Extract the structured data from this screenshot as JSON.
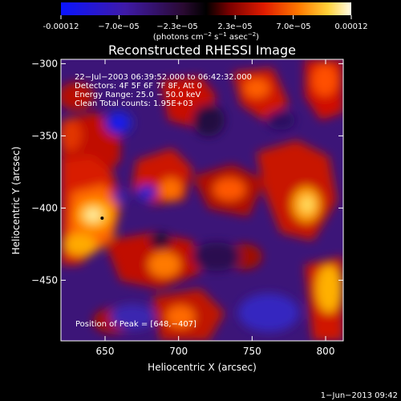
{
  "colorbar": {
    "ticks": [
      "-0.00012",
      "−7.0e−05",
      "−2.3e−05",
      "2.3e−05",
      "7.0e−05",
      "0.00012"
    ],
    "unit_main": "(photons cm",
    "unit_sup1": "−2",
    "unit_mid": " s",
    "unit_sup2": "−1",
    "unit_end": " asec",
    "unit_sup3": "−2",
    "unit_close": ")"
  },
  "chart_data": {
    "type": "heatmap",
    "title": "Reconstructed RHESSI Image",
    "xlabel": "Heliocentric X (arcsec)",
    "ylabel": "Heliocentric Y (arcsec)",
    "xlim": [
      620,
      812
    ],
    "ylim": [
      -492,
      -297
    ],
    "x_ticks": [
      650,
      700,
      750,
      800
    ],
    "y_ticks": [
      -300,
      -350,
      -400,
      -450
    ],
    "x_tick_labels": [
      "650",
      "700",
      "750",
      "800"
    ],
    "y_tick_labels": [
      "−300",
      "−350",
      "−400",
      "−450"
    ],
    "colorbar_range": [
      -0.00012,
      0.00012
    ],
    "annotations": [
      "22−Jul−2003 06:39:52.000 to 06:42:32.000",
      "Detectors: 4F 5F 6F 7F 8F, Att 0",
      "Energy Range: 25.0 − 50.0 keV",
      "Clean     Total counts: 1.95E+03"
    ],
    "peak_label": "Position of Peak = [648,−407]",
    "peak_position": [
      648,
      -407
    ],
    "bright_regions": [
      {
        "x": 648,
        "y": -407
      },
      {
        "x": 633,
        "y": -331
      },
      {
        "x": 676,
        "y": -373
      },
      {
        "x": 702,
        "y": -337
      },
      {
        "x": 723,
        "y": -387
      },
      {
        "x": 752,
        "y": -342
      },
      {
        "x": 787,
        "y": -382
      },
      {
        "x": 707,
        "y": -452
      },
      {
        "x": 803,
        "y": -469
      },
      {
        "x": 640,
        "y": -448
      }
    ],
    "dark_regions": [
      {
        "x": 656,
        "y": -343
      },
      {
        "x": 674,
        "y": -391
      },
      {
        "x": 688,
        "y": -453
      },
      {
        "x": 760,
        "y": -461
      },
      {
        "x": 720,
        "y": -478
      }
    ]
  },
  "footer_timestamp": "1−Jun−2013 09:42"
}
